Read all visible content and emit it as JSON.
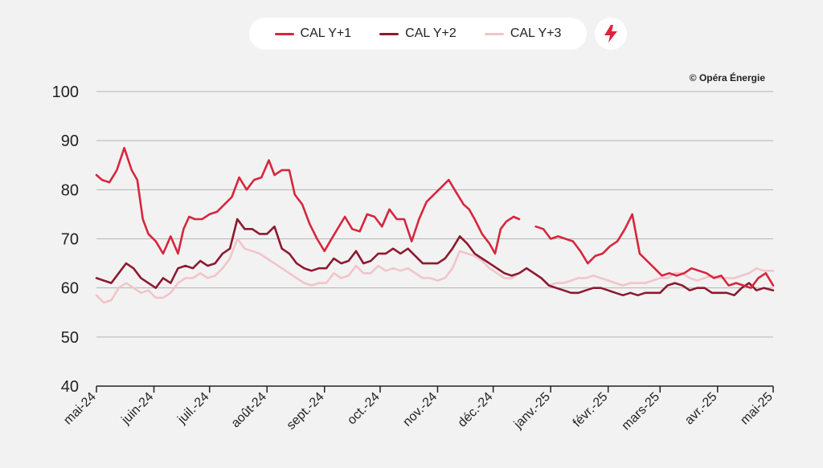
{
  "legend": {
    "s1": "CAL Y+1",
    "s2": "CAL Y+2",
    "s3": "CAL Y+3"
  },
  "credit": "© Opéra Énergie",
  "icons": {
    "badge": "lightning-bolt-icon"
  },
  "colors": {
    "cal_y1": "#d7263d",
    "cal_y2": "#8b1a2e",
    "cal_y3": "#f2c4cb",
    "grid": "#b5b5b5",
    "background": "#f2f2f2"
  },
  "chart_data": {
    "type": "line",
    "ylim": [
      40,
      100
    ],
    "yticks": [
      40,
      50,
      60,
      70,
      80,
      90,
      100
    ],
    "xlim": [
      "2024-05-01",
      "2025-05-01"
    ],
    "xticks": [
      {
        "date": "2024-05-01",
        "label": "mai-24"
      },
      {
        "date": "2024-06-01",
        "label": "juin-24"
      },
      {
        "date": "2024-07-01",
        "label": "juil.-24"
      },
      {
        "date": "2024-08-01",
        "label": "août-24"
      },
      {
        "date": "2024-09-01",
        "label": "sept.-24"
      },
      {
        "date": "2024-10-01",
        "label": "oct.-24"
      },
      {
        "date": "2024-11-01",
        "label": "nov.-24"
      },
      {
        "date": "2024-12-01",
        "label": "déc.-24"
      },
      {
        "date": "2025-01-01",
        "label": "janv.-25"
      },
      {
        "date": "2025-02-01",
        "label": "févr.-25"
      },
      {
        "date": "2025-03-01",
        "label": "mars-25"
      },
      {
        "date": "2025-04-01",
        "label": "avr.-25"
      },
      {
        "date": "2025-05-01",
        "label": "mai-25"
      }
    ],
    "grid": true,
    "legend_position": "top",
    "series": [
      {
        "name": "CAL Y+1",
        "x": [
          "2024-05-01",
          "2024-05-04",
          "2024-05-08",
          "2024-05-12",
          "2024-05-16",
          "2024-05-20",
          "2024-05-23",
          "2024-05-26",
          "2024-05-29",
          "2024-06-02",
          "2024-06-06",
          "2024-06-10",
          "2024-06-14",
          "2024-06-17",
          "2024-06-20",
          "2024-06-23",
          "2024-06-27",
          "2024-07-01",
          "2024-07-05",
          "2024-07-09",
          "2024-07-13",
          "2024-07-17",
          "2024-07-21",
          "2024-07-25",
          "2024-07-29",
          "2024-08-02",
          "2024-08-05",
          "2024-08-09",
          "2024-08-13",
          "2024-08-16",
          "2024-08-20",
          "2024-08-24",
          "2024-08-28",
          "2024-09-01",
          "2024-09-04",
          "2024-09-08",
          "2024-09-12",
          "2024-09-16",
          "2024-09-20",
          "2024-09-24",
          "2024-09-28",
          "2024-10-02",
          "2024-10-06",
          "2024-10-10",
          "2024-10-14",
          "2024-10-18",
          "2024-10-22",
          "2024-10-26",
          "2024-10-30",
          "2024-11-03",
          "2024-11-07",
          "2024-11-11",
          "2024-11-15",
          "2024-11-18",
          "2024-11-21",
          "2024-11-25",
          "2024-11-29",
          "2024-12-02",
          "2024-12-05",
          "2024-12-08",
          "2024-12-12",
          "2024-12-15"
        ],
        "y": [
          83,
          82,
          81.5,
          84,
          88.5,
          84,
          82,
          74,
          71,
          69.5,
          67,
          70.5,
          67,
          72,
          74.5,
          74,
          74,
          75,
          75.5,
          77,
          78.5,
          82.5,
          80,
          82,
          82.5,
          86,
          83,
          84,
          84,
          79,
          77,
          73,
          70,
          67.5,
          69.5,
          72,
          74.5,
          72,
          71.5,
          75,
          74.5,
          72.5,
          76,
          74,
          74,
          69.5,
          74,
          77.5,
          79,
          80.5,
          82,
          79.5,
          77,
          76,
          74,
          71,
          69,
          67,
          72,
          73.5,
          74.5,
          74
        ]
      },
      {
        "name": "CAL Y+1",
        "x": [
          "2024-12-24",
          "2024-12-28",
          "2025-01-01",
          "2025-01-05",
          "2025-01-09",
          "2025-01-13",
          "2025-01-17",
          "2025-01-21",
          "2025-01-25",
          "2025-01-29",
          "2025-02-02",
          "2025-02-06",
          "2025-02-10",
          "2025-02-14",
          "2025-02-18",
          "2025-02-22",
          "2025-02-26",
          "2025-03-02",
          "2025-03-06",
          "2025-03-10",
          "2025-03-14",
          "2025-03-18",
          "2025-03-22",
          "2025-03-26",
          "2025-03-30",
          "2025-04-03",
          "2025-04-07",
          "2025-04-11",
          "2025-04-15",
          "2025-04-19",
          "2025-04-23",
          "2025-04-27",
          "2025-05-01"
        ],
        "y": [
          72.5,
          72,
          70,
          70.5,
          70,
          69.5,
          67.5,
          65,
          66.5,
          67,
          68.5,
          69.5,
          72,
          75,
          67,
          65.5,
          64,
          62.5,
          63,
          62.5,
          63,
          64,
          63.5,
          63,
          62,
          62.5,
          60.5,
          61,
          60.5,
          60,
          62,
          63,
          60.5
        ]
      },
      {
        "name": "CAL Y+2",
        "x": [
          "2024-05-01",
          "2024-05-05",
          "2024-05-09",
          "2024-05-13",
          "2024-05-17",
          "2024-05-21",
          "2024-05-25",
          "2024-05-29",
          "2024-06-02",
          "2024-06-06",
          "2024-06-10",
          "2024-06-14",
          "2024-06-18",
          "2024-06-22",
          "2024-06-26",
          "2024-06-30",
          "2024-07-04",
          "2024-07-08",
          "2024-07-12",
          "2024-07-16",
          "2024-07-20",
          "2024-07-24",
          "2024-07-28",
          "2024-08-01",
          "2024-08-05",
          "2024-08-09",
          "2024-08-13",
          "2024-08-17",
          "2024-08-21",
          "2024-08-25",
          "2024-08-29",
          "2024-09-02",
          "2024-09-06",
          "2024-09-10",
          "2024-09-14",
          "2024-09-18",
          "2024-09-22",
          "2024-09-26",
          "2024-09-30",
          "2024-10-04",
          "2024-10-08",
          "2024-10-12",
          "2024-10-16",
          "2024-10-20",
          "2024-10-24",
          "2024-10-28",
          "2024-11-01",
          "2024-11-05",
          "2024-11-09",
          "2024-11-13",
          "2024-11-17",
          "2024-11-21",
          "2024-11-25",
          "2024-11-29",
          "2024-12-03",
          "2024-12-07",
          "2024-12-11",
          "2024-12-15",
          "2024-12-19",
          "2024-12-23",
          "2024-12-27",
          "2024-12-31",
          "2025-01-04",
          "2025-01-08",
          "2025-01-12",
          "2025-01-16",
          "2025-01-20",
          "2025-01-24",
          "2025-01-28",
          "2025-02-01",
          "2025-02-05",
          "2025-02-09",
          "2025-02-13",
          "2025-02-17",
          "2025-02-21",
          "2025-02-25",
          "2025-03-01",
          "2025-03-05",
          "2025-03-09",
          "2025-03-13",
          "2025-03-17",
          "2025-03-21",
          "2025-03-25",
          "2025-03-29",
          "2025-04-02",
          "2025-04-06",
          "2025-04-10",
          "2025-04-14",
          "2025-04-18",
          "2025-04-22",
          "2025-04-26",
          "2025-05-01"
        ],
        "y": [
          62,
          61.5,
          61,
          63,
          65,
          64,
          62,
          61,
          60,
          62,
          61,
          64,
          64.5,
          64,
          65.5,
          64.5,
          65,
          67,
          68,
          74,
          72,
          72,
          71,
          71,
          72.5,
          68,
          67,
          65,
          64,
          63.5,
          64,
          64,
          66,
          65,
          65.5,
          67.5,
          65,
          65.5,
          67,
          67,
          68,
          67,
          68,
          66.5,
          65,
          65,
          65,
          66,
          68,
          70.5,
          69,
          67,
          66,
          65,
          64,
          63,
          62.5,
          63,
          64,
          63,
          62,
          60.5,
          60,
          59.5,
          59,
          59,
          59.5,
          60,
          60,
          59.5,
          59,
          58.5,
          59,
          58.5,
          59,
          59,
          59,
          60.5,
          61,
          60.5,
          59.5,
          60,
          60,
          59,
          59,
          59,
          58.5,
          60,
          61,
          59.5,
          60,
          59.5
        ]
      },
      {
        "name": "CAL Y+3",
        "x": [
          "2024-05-01",
          "2024-05-05",
          "2024-05-09",
          "2024-05-13",
          "2024-05-17",
          "2024-05-21",
          "2024-05-25",
          "2024-05-29",
          "2024-06-02",
          "2024-06-06",
          "2024-06-10",
          "2024-06-14",
          "2024-06-18",
          "2024-06-22",
          "2024-06-26",
          "2024-06-30",
          "2024-07-04",
          "2024-07-08",
          "2024-07-12",
          "2024-07-16",
          "2024-07-20",
          "2024-07-24",
          "2024-07-28",
          "2024-08-01",
          "2024-08-05",
          "2024-08-09",
          "2024-08-13",
          "2024-08-17",
          "2024-08-21",
          "2024-08-25",
          "2024-08-29",
          "2024-09-02",
          "2024-09-06",
          "2024-09-10",
          "2024-09-14",
          "2024-09-18",
          "2024-09-22",
          "2024-09-26",
          "2024-09-30",
          "2024-10-04",
          "2024-10-08",
          "2024-10-12",
          "2024-10-16",
          "2024-10-20",
          "2024-10-24",
          "2024-10-28",
          "2024-11-01",
          "2024-11-05",
          "2024-11-09",
          "2024-11-13",
          "2024-11-17",
          "2024-11-21",
          "2024-11-25",
          "2024-11-29",
          "2024-12-03",
          "2024-12-07",
          "2024-12-11",
          "2024-12-15",
          "2024-12-19",
          "2024-12-23",
          "2024-12-27",
          "2024-12-31",
          "2025-01-04",
          "2025-01-08",
          "2025-01-12",
          "2025-01-16",
          "2025-01-20",
          "2025-01-24",
          "2025-01-28",
          "2025-02-01",
          "2025-02-05",
          "2025-02-09",
          "2025-02-13",
          "2025-02-17",
          "2025-02-21",
          "2025-02-25",
          "2025-03-01",
          "2025-03-05",
          "2025-03-09",
          "2025-03-13",
          "2025-03-17",
          "2025-03-21",
          "2025-03-25",
          "2025-03-29",
          "2025-04-02",
          "2025-04-06",
          "2025-04-10",
          "2025-04-14",
          "2025-04-18",
          "2025-04-22",
          "2025-04-26",
          "2025-05-01"
        ],
        "y": [
          58.5,
          57,
          57.5,
          60,
          61,
          60,
          59,
          59.5,
          58,
          58,
          59,
          61,
          62,
          62,
          63,
          62,
          62.5,
          64,
          66,
          70,
          68,
          67.5,
          67,
          66,
          65,
          64,
          63,
          62,
          61,
          60.5,
          61,
          61,
          63,
          62,
          62.5,
          64.5,
          63,
          63,
          64.5,
          63.5,
          64,
          63.5,
          64,
          63,
          62,
          62,
          61.5,
          62,
          64,
          67.5,
          67,
          66.5,
          65.5,
          64,
          63,
          62,
          62,
          63,
          64,
          63,
          62,
          60.5,
          61,
          61,
          61.5,
          62,
          62,
          62.5,
          62,
          61.5,
          61,
          60.5,
          61,
          61,
          61,
          61.5,
          62,
          62,
          63,
          63,
          62,
          61.5,
          62,
          62.5,
          62,
          62,
          62,
          62.5,
          63,
          64,
          63.5,
          63.5
        ]
      }
    ]
  }
}
